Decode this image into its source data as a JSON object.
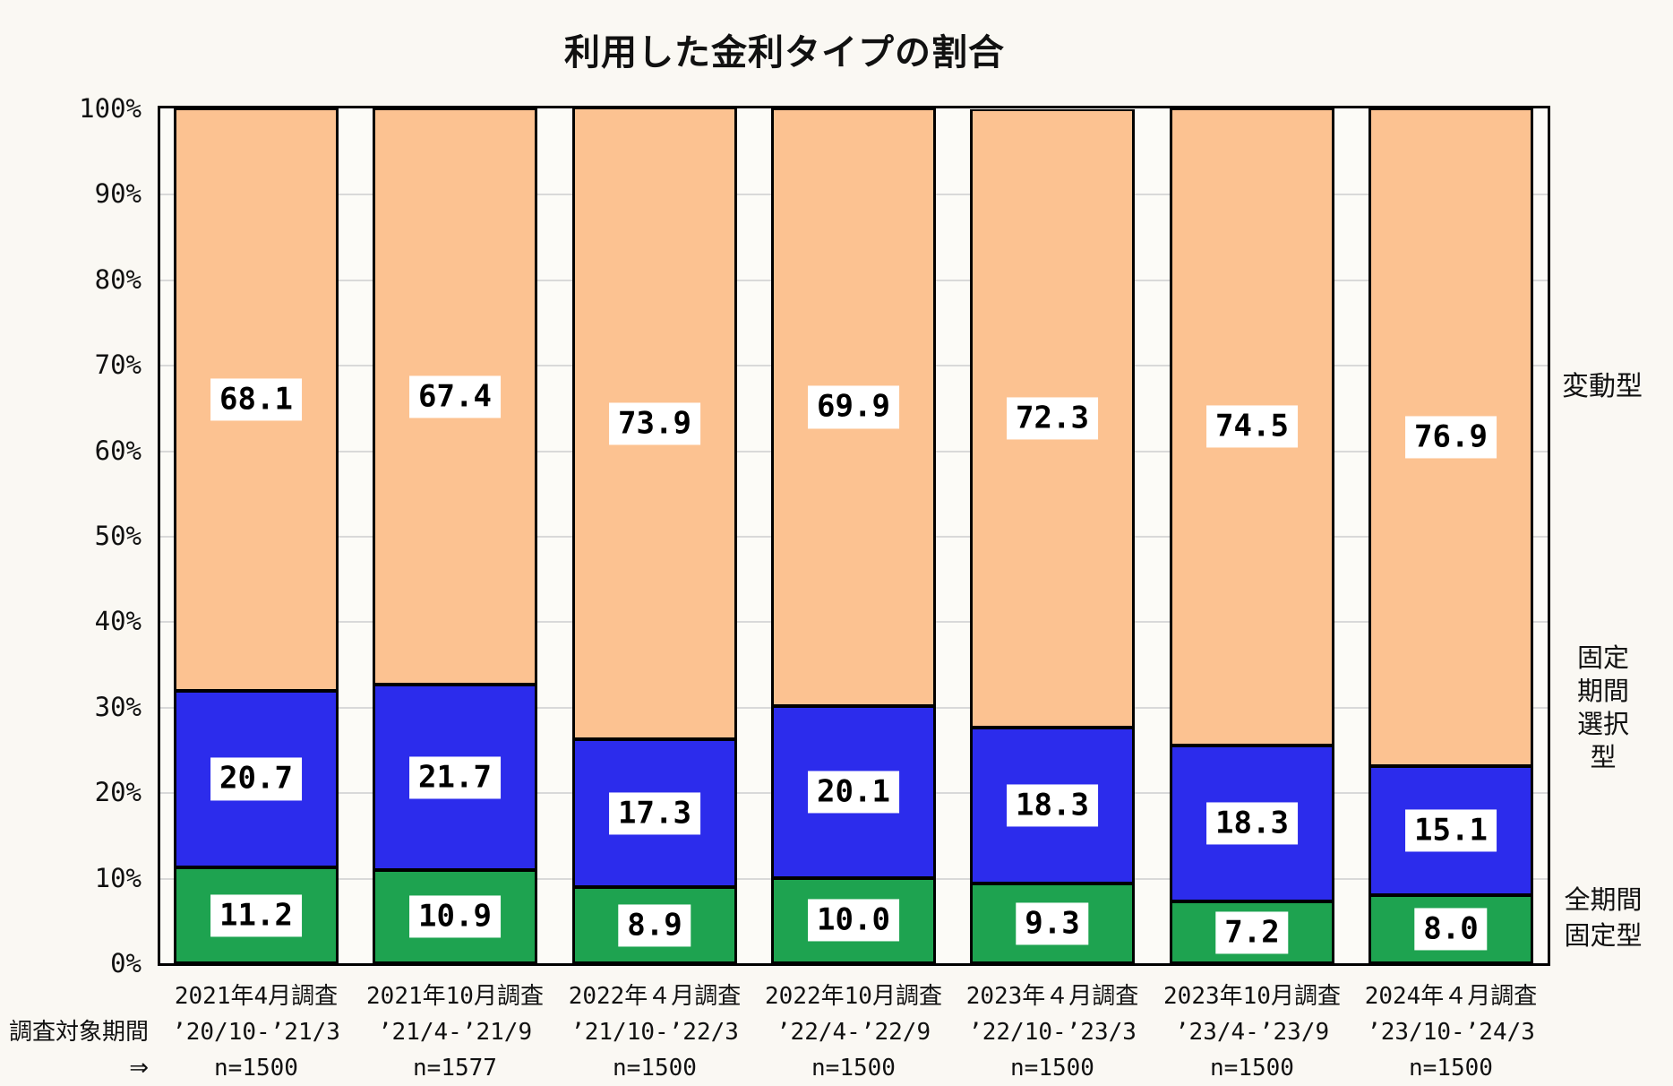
{
  "title": "利用した金利タイプの割合",
  "x_axis_prefix": "調査対象期間⇒",
  "right_labels": {
    "variable": "変動型",
    "fixed_period_lines": [
      "固定",
      "期間",
      "選択",
      "型"
    ],
    "full_fixed_lines": [
      "全期間",
      "固定型"
    ]
  },
  "colors": {
    "background": "#FAF8F3",
    "plot_background": "#FCFBF7",
    "grid": "#D9D9D9",
    "bar_border": "#000000",
    "value_label_background": "#FFFFFF",
    "text": "#111111"
  },
  "chart_data": {
    "type": "bar",
    "stacked": true,
    "title": "利用した金利タイプの割合",
    "grid": true,
    "legend_position": "right",
    "y_axis": {
      "min": 0,
      "max": 100,
      "step": 10,
      "tick_suffix": "%"
    },
    "categories": [
      {
        "survey": "2021年4月調査",
        "period": "’20/10-’21/3",
        "n": "n=1500"
      },
      {
        "survey": "2021年10月調査",
        "period": "’21/4-’21/9",
        "n": "n=1577"
      },
      {
        "survey": "2022年４月調査",
        "period": "’21/10-’22/3",
        "n": "n=1500"
      },
      {
        "survey": "2022年10月調査",
        "period": "’22/4-’22/9",
        "n": "n=1500"
      },
      {
        "survey": "2023年４月調査",
        "period": "’22/10-’23/3",
        "n": "n=1500"
      },
      {
        "survey": "2023年10月調査",
        "period": "’23/4-’23/9",
        "n": "n=1500"
      },
      {
        "survey": "2024年４月調査",
        "period": "’23/10-’24/3",
        "n": "n=1500"
      }
    ],
    "series": [
      {
        "name": "全期間固定型",
        "color": "#1EA350",
        "values": [
          11.2,
          10.9,
          8.9,
          10.0,
          9.3,
          7.2,
          8.0
        ]
      },
      {
        "name": "固定期間選択型",
        "color": "#2C2CEC",
        "values": [
          20.7,
          21.7,
          17.3,
          20.1,
          18.3,
          18.3,
          15.1
        ]
      },
      {
        "name": "変動型",
        "color": "#FCC291",
        "values": [
          68.1,
          67.4,
          73.9,
          69.9,
          72.3,
          74.5,
          76.9
        ]
      }
    ]
  }
}
